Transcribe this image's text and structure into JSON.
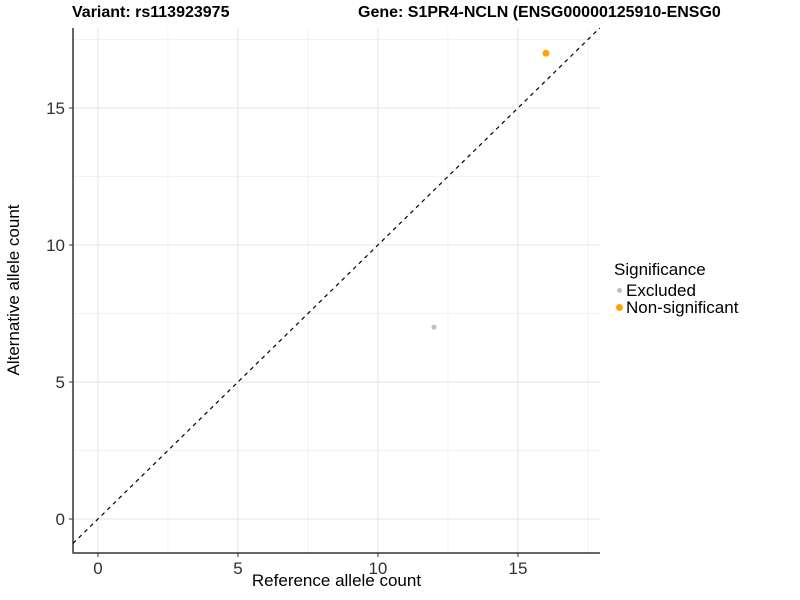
{
  "chart_data": {
    "type": "scatter",
    "title_left": "Variant: rs113923975",
    "title_right": "Gene: S1PR4-NCLN (ENSG00000125910-ENSG0",
    "xlabel": "Reference allele count",
    "ylabel": "Alternative allele count",
    "xlim": [
      -0.89,
      17.93
    ],
    "ylim": [
      -1.24,
      17.92
    ],
    "x_ticks": [
      0,
      5,
      10,
      15
    ],
    "y_ticks": [
      0,
      5,
      10,
      15
    ],
    "x_minor_ticks": [
      2.5,
      7.5,
      12.5,
      17.5
    ],
    "y_minor_ticks": [
      2.5,
      7.5,
      12.5,
      17.5
    ],
    "identity_line": {
      "show": true,
      "style": "dashed",
      "color": "#000000"
    },
    "grid": {
      "major_color": "#e5e5e5",
      "minor_color": "#f2f2f2"
    },
    "axis_line_color": "#333333",
    "tick_label_color": "#303030",
    "series": [
      {
        "name": "Excluded",
        "color": "#bebebe",
        "point_size": 5,
        "points": [
          {
            "x": 12,
            "y": 7
          }
        ]
      },
      {
        "name": "Non-significant",
        "color": "#ffa500",
        "point_size": 7,
        "points": [
          {
            "x": 16,
            "y": 17
          }
        ]
      }
    ],
    "legend": {
      "title": "Significance",
      "position": "right"
    }
  }
}
